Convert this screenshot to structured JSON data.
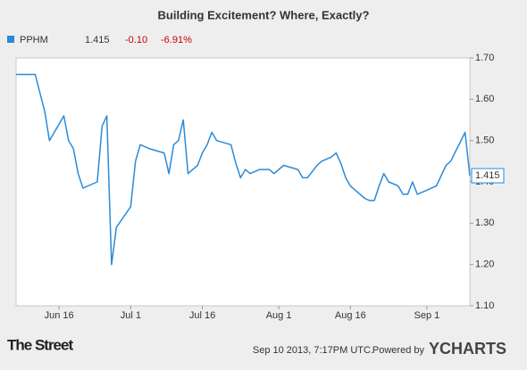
{
  "chart_data": {
    "type": "line",
    "title": "Building Excitement? Where, Exactly?",
    "change": "-0.10",
    "change_percent": "-6.91%",
    "x": [
      "Jun 7",
      "Jun 11",
      "Jun 13",
      "Jun 14",
      "Jun 17",
      "Jun 18",
      "Jun 19",
      "Jun 20",
      "Jun 21",
      "Jun 24",
      "Jun 25",
      "Jun 26",
      "Jun 27",
      "Jun 28",
      "Jul 1",
      "Jul 2",
      "Jul 3",
      "Jul 5",
      "Jul 8",
      "Jul 9",
      "Jul 10",
      "Jul 11",
      "Jul 12",
      "Jul 13",
      "Jul 15",
      "Jul 16",
      "Jul 17",
      "Jul 18",
      "Jul 19",
      "Jul 22",
      "Jul 23",
      "Jul 24",
      "Jul 25",
      "Jul 26",
      "Jul 28",
      "Jul 30",
      "Jul 31",
      "Aug 2",
      "Aug 5",
      "Aug 6",
      "Aug 7",
      "Aug 9",
      "Aug 10",
      "Aug 12",
      "Aug 13",
      "Aug 14",
      "Aug 15",
      "Aug 16",
      "Aug 17",
      "Aug 19",
      "Aug 20",
      "Aug 21",
      "Aug 22",
      "Aug 23",
      "Aug 24",
      "Aug 26",
      "Aug 27",
      "Aug 28",
      "Aug 29",
      "Aug 30",
      "Sep 1",
      "Sep 3",
      "Sep 5",
      "Sep 6",
      "Sep 9",
      "Sep 10"
    ],
    "series": [
      {
        "name": "PPHM",
        "color": "#2b8ad8",
        "values": [
          1.66,
          1.66,
          1.57,
          1.5,
          1.56,
          1.5,
          1.48,
          1.42,
          1.385,
          1.4,
          1.535,
          1.56,
          1.2,
          1.29,
          1.34,
          1.45,
          1.49,
          1.48,
          1.47,
          1.42,
          1.49,
          1.5,
          1.55,
          1.42,
          1.44,
          1.47,
          1.49,
          1.52,
          1.5,
          1.49,
          1.445,
          1.41,
          1.43,
          1.42,
          1.43,
          1.43,
          1.42,
          1.44,
          1.43,
          1.41,
          1.41,
          1.44,
          1.45,
          1.46,
          1.47,
          1.445,
          1.41,
          1.39,
          1.38,
          1.36,
          1.355,
          1.355,
          1.39,
          1.42,
          1.4,
          1.39,
          1.37,
          1.37,
          1.4,
          1.37,
          1.38,
          1.39,
          1.44,
          1.45,
          1.52,
          1.415
        ]
      }
    ],
    "xlim": [
      "Jun 7",
      "Sep 10"
    ],
    "xticks": [
      "Jun 16",
      "Jul 1",
      "Jul 16",
      "Aug 1",
      "Aug 16",
      "Sep 1"
    ],
    "ylim": [
      1.1,
      1.7
    ],
    "yticks": [
      {
        "value": 1.1,
        "label": "1.10"
      },
      {
        "value": 1.2,
        "label": "1.20"
      },
      {
        "value": 1.3,
        "label": "1.30"
      },
      {
        "value": 1.4,
        "label": "1.40"
      },
      {
        "value": 1.5,
        "label": "1.50"
      },
      {
        "value": 1.6,
        "label": "1.60"
      },
      {
        "value": 1.7,
        "label": "1.70"
      }
    ],
    "grid": false
  },
  "footer": {
    "logo": "The Street",
    "timestamp": "Sep 10 2013, 7:17PM UTC.",
    "powered_by": "Powered by",
    "brand": "YCHARTS"
  }
}
